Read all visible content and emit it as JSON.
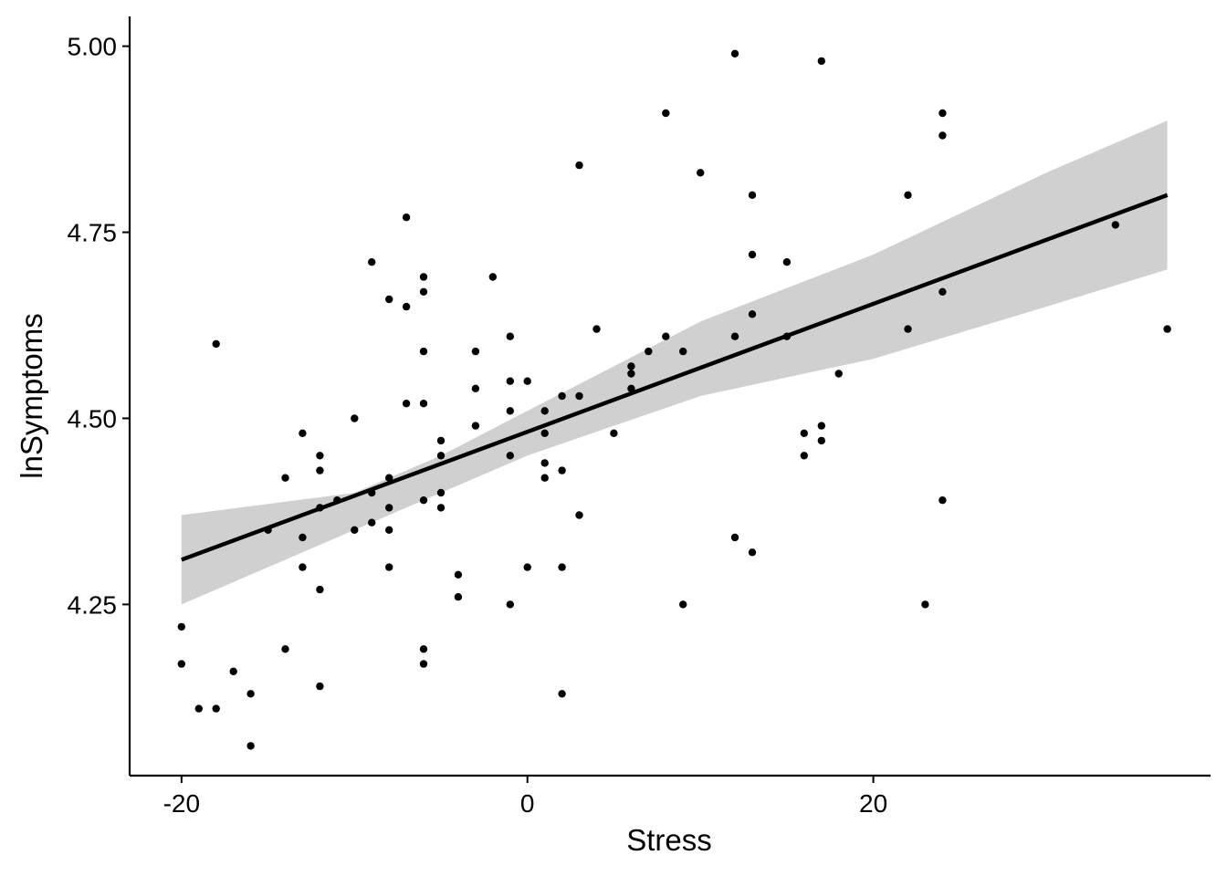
{
  "chart_data": {
    "type": "scatter",
    "title": "",
    "xlabel": "Stress",
    "ylabel": "lnSymptoms",
    "xlim": [
      -23,
      39.5
    ],
    "ylim": [
      4.02,
      5.04
    ],
    "x_ticks": [
      -20,
      0,
      20
    ],
    "x_tick_labels": [
      "-20",
      "0",
      "20"
    ],
    "y_ticks": [
      4.25,
      4.5,
      4.75,
      5.0
    ],
    "y_tick_labels": [
      "4.25",
      "4.50",
      "4.75",
      "5.00"
    ],
    "grid": false,
    "legend": "none",
    "colors": {
      "points": "#000000",
      "fit_line": "#000000",
      "confidence_band": "#d0d0d0"
    },
    "points": [
      [
        -20,
        4.22
      ],
      [
        -20,
        4.17
      ],
      [
        -19,
        4.11
      ],
      [
        -18,
        4.11
      ],
      [
        -18,
        4.6
      ],
      [
        -17,
        4.16
      ],
      [
        -16,
        4.13
      ],
      [
        -16,
        4.06
      ],
      [
        -15,
        4.35
      ],
      [
        -14,
        4.42
      ],
      [
        -14,
        4.19
      ],
      [
        -13,
        4.48
      ],
      [
        -13,
        4.34
      ],
      [
        -13,
        4.3
      ],
      [
        -12,
        4.45
      ],
      [
        -12,
        4.43
      ],
      [
        -12,
        4.38
      ],
      [
        -12,
        4.27
      ],
      [
        -12,
        4.14
      ],
      [
        -11,
        4.39
      ],
      [
        -10,
        4.5
      ],
      [
        -10,
        4.35
      ],
      [
        -9,
        4.71
      ],
      [
        -9,
        4.4
      ],
      [
        -9,
        4.36
      ],
      [
        -8,
        4.66
      ],
      [
        -8,
        4.42
      ],
      [
        -8,
        4.38
      ],
      [
        -8,
        4.35
      ],
      [
        -8,
        4.3
      ],
      [
        -7,
        4.77
      ],
      [
        -7,
        4.65
      ],
      [
        -7,
        4.52
      ],
      [
        -6,
        4.69
      ],
      [
        -6,
        4.67
      ],
      [
        -6,
        4.59
      ],
      [
        -6,
        4.52
      ],
      [
        -6,
        4.39
      ],
      [
        -6,
        4.19
      ],
      [
        -6,
        4.17
      ],
      [
        -5,
        4.47
      ],
      [
        -5,
        4.45
      ],
      [
        -5,
        4.4
      ],
      [
        -5,
        4.38
      ],
      [
        -4,
        4.29
      ],
      [
        -4,
        4.26
      ],
      [
        -3,
        4.59
      ],
      [
        -3,
        4.54
      ],
      [
        -3,
        4.49
      ],
      [
        -2,
        4.69
      ],
      [
        -1,
        4.61
      ],
      [
        -1,
        4.55
      ],
      [
        -1,
        4.51
      ],
      [
        -1,
        4.45
      ],
      [
        -1,
        4.25
      ],
      [
        0,
        4.55
      ],
      [
        0,
        4.3
      ],
      [
        1,
        4.51
      ],
      [
        1,
        4.48
      ],
      [
        1,
        4.44
      ],
      [
        1,
        4.42
      ],
      [
        2,
        4.53
      ],
      [
        2,
        4.43
      ],
      [
        2,
        4.3
      ],
      [
        2,
        4.13
      ],
      [
        3,
        4.84
      ],
      [
        3,
        4.53
      ],
      [
        3,
        4.37
      ],
      [
        4,
        4.62
      ],
      [
        5,
        4.48
      ],
      [
        6,
        4.57
      ],
      [
        6,
        4.56
      ],
      [
        6,
        4.54
      ],
      [
        7,
        4.59
      ],
      [
        8,
        4.91
      ],
      [
        8,
        4.61
      ],
      [
        9,
        4.59
      ],
      [
        9,
        4.25
      ],
      [
        10,
        4.83
      ],
      [
        12,
        4.99
      ],
      [
        12,
        4.61
      ],
      [
        12,
        4.34
      ],
      [
        13,
        4.8
      ],
      [
        13,
        4.72
      ],
      [
        13,
        4.64
      ],
      [
        13,
        4.32
      ],
      [
        15,
        4.71
      ],
      [
        15,
        4.61
      ],
      [
        16,
        4.48
      ],
      [
        16,
        4.45
      ],
      [
        17,
        4.98
      ],
      [
        17,
        4.49
      ],
      [
        17,
        4.47
      ],
      [
        18,
        4.56
      ],
      [
        22,
        4.8
      ],
      [
        22,
        4.62
      ],
      [
        23,
        4.25
      ],
      [
        24,
        4.91
      ],
      [
        24,
        4.88
      ],
      [
        24,
        4.67
      ],
      [
        24,
        4.39
      ],
      [
        34,
        4.76
      ],
      [
        37,
        4.62
      ]
    ],
    "fit": {
      "x": [
        -20,
        37
      ],
      "y": [
        4.31,
        4.8
      ]
    },
    "confidence_band": {
      "x": [
        -20,
        -10,
        -5,
        0,
        5,
        10,
        20,
        30,
        37
      ],
      "lower": [
        4.25,
        4.35,
        4.4,
        4.45,
        4.49,
        4.53,
        4.58,
        4.65,
        4.7
      ],
      "upper": [
        4.37,
        4.4,
        4.45,
        4.51,
        4.57,
        4.63,
        4.72,
        4.83,
        4.9
      ]
    }
  }
}
